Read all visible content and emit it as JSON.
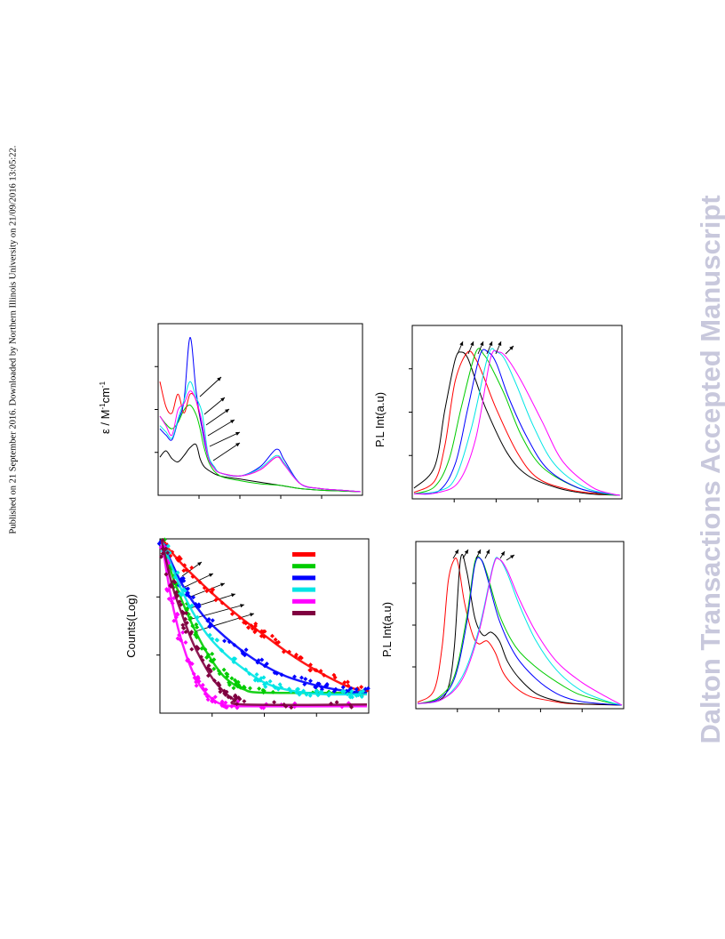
{
  "page": {
    "provenance": "Published on 21 September 2016. Downloaded by Northern Illinois University on 21/09/2016 13:05:22.",
    "watermark": "Dalton Transactions Accepted Manuscript"
  },
  "colors": {
    "black": "#000000",
    "red": "#ff0000",
    "green": "#00cc00",
    "blue": "#0000ff",
    "cyan": "#00e5e5",
    "magenta": "#ff00ff",
    "wine": "#800040"
  },
  "chart_data": [
    {
      "type": "line",
      "panel": "absorption",
      "ylabel_main": "ε / M",
      "ylabel_sup1": "-1",
      "ylabel_mid": "cm",
      "ylabel_sup2": "-1",
      "x_range": [
        0,
        100
      ],
      "y_range": [
        0,
        100
      ],
      "annotation": "arrows indicating a shift between series",
      "series": [
        {
          "color": "black",
          "x": [
            0,
            3,
            6,
            9,
            12,
            15,
            18,
            20,
            22,
            25,
            30,
            40,
            50,
            60,
            70,
            80,
            90,
            100
          ],
          "y": [
            22,
            26,
            21,
            19,
            23,
            28,
            30,
            21,
            16,
            13,
            10,
            8,
            6,
            4,
            2,
            1,
            0.5,
            0
          ]
        },
        {
          "color": "green",
          "x": [
            0,
            3,
            6,
            9,
            12,
            15,
            18,
            20,
            22,
            25,
            30,
            40,
            50,
            60,
            70,
            80,
            90,
            100
          ],
          "y": [
            48,
            43,
            40,
            44,
            52,
            55,
            49,
            40,
            28,
            17,
            10,
            7,
            5,
            4,
            2,
            1,
            0.5,
            0
          ]
        },
        {
          "color": "red",
          "x": [
            0,
            3,
            6,
            9,
            12,
            15,
            18,
            21,
            24,
            27,
            30,
            40,
            50,
            58,
            62,
            70,
            80,
            90,
            100
          ],
          "y": [
            70,
            54,
            50,
            62,
            50,
            62,
            58,
            40,
            22,
            15,
            12,
            10,
            14,
            22,
            18,
            5,
            2,
            1,
            0
          ]
        },
        {
          "color": "blue",
          "x": [
            0,
            3,
            6,
            9,
            12,
            15,
            18,
            21,
            24,
            27,
            30,
            40,
            50,
            58,
            62,
            70,
            80,
            90,
            100
          ],
          "y": [
            40,
            36,
            33,
            45,
            58,
            98,
            64,
            40,
            22,
            16,
            12,
            10,
            16,
            27,
            20,
            5,
            2,
            1,
            0
          ]
        },
        {
          "color": "cyan",
          "x": [
            0,
            3,
            6,
            9,
            12,
            15,
            18,
            21,
            24,
            27,
            30,
            40,
            50,
            58,
            62,
            70,
            80,
            90,
            100
          ],
          "y": [
            42,
            38,
            34,
            46,
            58,
            70,
            60,
            50,
            24,
            16,
            12,
            10,
            15,
            23,
            18,
            5,
            2,
            1,
            0
          ]
        },
        {
          "color": "magenta",
          "x": [
            0,
            3,
            6,
            9,
            12,
            15,
            18,
            21,
            24,
            27,
            30,
            40,
            50,
            58,
            62,
            70,
            80,
            90,
            100
          ],
          "y": [
            48,
            42,
            36,
            52,
            56,
            64,
            58,
            44,
            22,
            15,
            12,
            10,
            14,
            22,
            17,
            5,
            2,
            1,
            0
          ]
        }
      ]
    },
    {
      "type": "line",
      "panel": "emission-top",
      "ylabel": "P.L Int(a.u)",
      "x_range": [
        0,
        100
      ],
      "y_range": [
        0,
        100
      ],
      "annotation": "arrows indicating emission maxima",
      "series": [
        {
          "color": "black",
          "x": [
            0,
            10,
            15,
            20,
            23,
            26,
            30,
            35,
            45,
            55,
            70,
            85,
            100
          ],
          "y": [
            5,
            20,
            60,
            95,
            100,
            96,
            80,
            60,
            30,
            14,
            5,
            1,
            0
          ]
        },
        {
          "color": "red",
          "x": [
            0,
            10,
            15,
            20,
            26,
            30,
            34,
            40,
            50,
            60,
            75,
            90,
            100
          ],
          "y": [
            2,
            10,
            35,
            80,
            100,
            95,
            82,
            60,
            30,
            12,
            4,
            1,
            0
          ]
        },
        {
          "color": "green",
          "x": [
            0,
            10,
            17,
            23,
            30,
            34,
            38,
            44,
            52,
            62,
            78,
            92,
            100
          ],
          "y": [
            1,
            6,
            25,
            62,
            100,
            98,
            88,
            70,
            42,
            20,
            6,
            1,
            0
          ]
        },
        {
          "color": "blue",
          "x": [
            0,
            12,
            20,
            26,
            32,
            36,
            40,
            46,
            55,
            65,
            80,
            94,
            100
          ],
          "y": [
            1,
            3,
            22,
            60,
            98,
            100,
            92,
            68,
            40,
            18,
            5,
            1,
            0
          ]
        },
        {
          "color": "cyan",
          "x": [
            0,
            12,
            20,
            28,
            36,
            40,
            44,
            50,
            58,
            68,
            82,
            95,
            100
          ],
          "y": [
            1,
            3,
            12,
            48,
            98,
            100,
            95,
            76,
            48,
            22,
            6,
            1,
            0
          ]
        },
        {
          "color": "magenta",
          "x": [
            0,
            12,
            22,
            30,
            37,
            41,
            45,
            52,
            62,
            72,
            86,
            96,
            100
          ],
          "y": [
            1,
            2,
            10,
            40,
            95,
            100,
            96,
            80,
            52,
            24,
            6,
            1,
            0
          ]
        }
      ]
    },
    {
      "type": "scatter",
      "panel": "decay",
      "ylabel": "Counts(Log)",
      "x_range": [
        0,
        100
      ],
      "y_range": [
        0,
        100
      ],
      "legend_placement": "top-right",
      "legend_colors": [
        "red",
        "green",
        "blue",
        "cyan",
        "magenta",
        "wine"
      ],
      "annotation": "arrows indicating decay traces",
      "series": [
        {
          "color": "red",
          "x": [
            0,
            10,
            20,
            30,
            40,
            50,
            60,
            70,
            80,
            90,
            100
          ],
          "y": [
            100,
            86,
            74,
            63,
            53,
            44,
            35,
            27,
            20,
            14,
            10
          ]
        },
        {
          "color": "green",
          "x": [
            0,
            5,
            10,
            15,
            20,
            25,
            30,
            35,
            40,
            50,
            100
          ],
          "y": [
            100,
            80,
            64,
            50,
            38,
            28,
            20,
            15,
            12,
            10,
            10
          ]
        },
        {
          "color": "blue",
          "x": [
            0,
            10,
            20,
            30,
            40,
            50,
            60,
            70,
            80,
            90,
            100
          ],
          "y": [
            100,
            74,
            56,
            44,
            34,
            26,
            20,
            16,
            13,
            11,
            10
          ]
        },
        {
          "color": "cyan",
          "x": [
            0,
            10,
            20,
            30,
            40,
            50,
            60,
            70,
            80,
            90,
            100
          ],
          "y": [
            100,
            70,
            48,
            34,
            24,
            16,
            12,
            10,
            9,
            9,
            9
          ]
        },
        {
          "color": "magenta",
          "x": [
            0,
            4,
            8,
            12,
            16,
            20,
            25,
            30,
            40,
            100
          ],
          "y": [
            100,
            70,
            48,
            32,
            20,
            12,
            6,
            3,
            2,
            2
          ]
        },
        {
          "color": "wine",
          "x": [
            0,
            5,
            10,
            15,
            20,
            25,
            30,
            35,
            40,
            100
          ],
          "y": [
            100,
            74,
            56,
            40,
            28,
            18,
            11,
            6,
            3,
            3
          ]
        }
      ]
    },
    {
      "type": "line",
      "panel": "emission-bottom",
      "ylabel": "P.L Int(a.u)",
      "x_range": [
        0,
        100
      ],
      "y_range": [
        0,
        100
      ],
      "annotation": "arrows indicating emission maxima",
      "series": [
        {
          "color": "red",
          "x": [
            0,
            8,
            12,
            15,
            18,
            20,
            23,
            27,
            30,
            34,
            38,
            42,
            48,
            55,
            65,
            75,
            100
          ],
          "y": [
            2,
            10,
            40,
            85,
            100,
            96,
            70,
            48,
            42,
            44,
            36,
            22,
            12,
            6,
            3,
            1,
            0
          ]
        },
        {
          "color": "black",
          "x": [
            0,
            10,
            15,
            18,
            21,
            24,
            28,
            32,
            36,
            40,
            44,
            50,
            58,
            68,
            78,
            100
          ],
          "y": [
            1,
            3,
            12,
            40,
            100,
            92,
            60,
            48,
            50,
            44,
            30,
            18,
            8,
            3,
            1,
            0
          ]
        },
        {
          "color": "green",
          "x": [
            0,
            10,
            18,
            24,
            28,
            31,
            34,
            40,
            48,
            58,
            68,
            78,
            90,
            100
          ],
          "y": [
            1,
            5,
            20,
            60,
            98,
            100,
            90,
            62,
            40,
            26,
            16,
            8,
            3,
            0
          ]
        },
        {
          "color": "blue",
          "x": [
            0,
            10,
            18,
            24,
            28,
            31,
            34,
            40,
            48,
            58,
            68,
            78,
            90,
            100
          ],
          "y": [
            1,
            4,
            18,
            56,
            96,
            100,
            88,
            58,
            34,
            18,
            8,
            3,
            1,
            0
          ]
        },
        {
          "color": "cyan",
          "x": [
            0,
            12,
            22,
            30,
            37,
            40,
            44,
            50,
            58,
            68,
            80,
            92,
            100
          ],
          "y": [
            1,
            4,
            20,
            52,
            96,
            100,
            90,
            68,
            44,
            24,
            10,
            3,
            0
          ]
        },
        {
          "color": "magenta",
          "x": [
            0,
            12,
            22,
            30,
            37,
            40,
            44,
            50,
            58,
            68,
            80,
            92,
            100
          ],
          "y": [
            1,
            4,
            18,
            50,
            95,
            100,
            92,
            72,
            50,
            30,
            16,
            6,
            0
          ]
        }
      ]
    }
  ]
}
